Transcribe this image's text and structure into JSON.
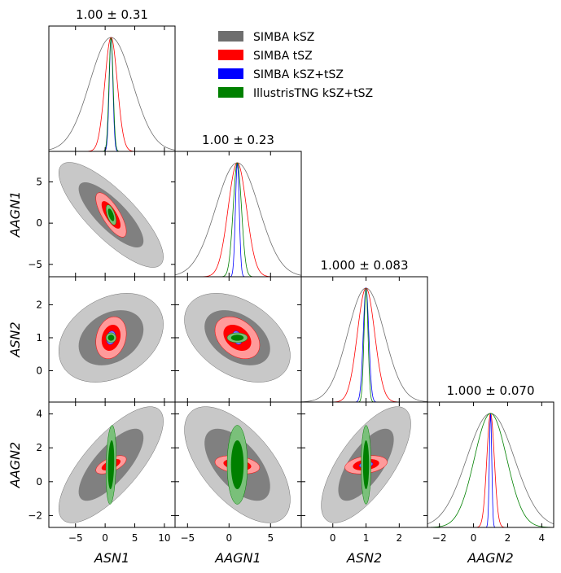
{
  "chart_data": {
    "type": "triangle-corner-plot",
    "parameters": [
      {
        "key": "ASN1",
        "label": "ASN1",
        "range": [
          -9.5,
          11.8
        ],
        "ticks": [
          -5,
          0,
          5,
          10
        ],
        "tick_labels": [
          "−5",
          "0",
          "5",
          "10"
        ],
        "title": "1.00 ± 0.31"
      },
      {
        "key": "AAGN1",
        "label": "AAGN1",
        "range": [
          -6.5,
          8.7
        ],
        "ticks": [
          -5,
          0,
          5
        ],
        "tick_labels": [
          "−5",
          "0",
          "5"
        ],
        "title": "1.00 ± 0.23"
      },
      {
        "key": "ASN2",
        "label": "ASN2",
        "range": [
          -0.95,
          2.85
        ],
        "ticks": [
          0,
          1,
          2
        ],
        "tick_labels": [
          "0",
          "1",
          "2"
        ],
        "title": "1.000 ± 0.083"
      },
      {
        "key": "AAGN2",
        "label": "AAGN2",
        "range": [
          -2.7,
          4.7
        ],
        "ticks": [
          -2,
          0,
          2,
          4
        ],
        "tick_labels": [
          "−2",
          "0",
          "2",
          "4"
        ],
        "title": "1.000 ± 0.070"
      }
    ],
    "series": [
      {
        "name": "SIMBA kSZ",
        "color": "#6e6e6e",
        "inner_color": "#808080",
        "outer_color": "#c8c8c8",
        "sigma": [
          3.6,
          2.6,
          0.55,
          1.4
        ],
        "corr": [
          [
            1,
            -0.8,
            0.3,
            0.75
          ],
          [
            -0.8,
            1,
            -0.4,
            -0.6
          ],
          [
            0.3,
            -0.4,
            1,
            0.7
          ],
          [
            0.75,
            -0.6,
            0.7,
            1
          ]
        ]
      },
      {
        "name": "SIMBA tSZ",
        "color": "#ff0000",
        "inner_color": "#ff0000",
        "outer_color": "#ff9a9a",
        "sigma": [
          1.05,
          1.1,
          0.26,
          0.22
        ],
        "corr": [
          [
            1,
            -0.75,
            0.2,
            0.6
          ],
          [
            -0.75,
            1,
            -0.35,
            -0.3
          ],
          [
            0.2,
            -0.35,
            1,
            0.3
          ],
          [
            0.6,
            -0.3,
            0.3,
            1
          ]
        ]
      },
      {
        "name": "SIMBA kSZ+tSZ",
        "color": "#0000ff",
        "inner_color": "#0000ff",
        "outer_color": "#7a7aff",
        "sigma": [
          0.31,
          0.23,
          0.083,
          0.07
        ],
        "corr": [
          [
            1,
            -0.6,
            0.2,
            0.5
          ],
          [
            -0.6,
            1,
            -0.3,
            -0.3
          ],
          [
            0.2,
            -0.3,
            1,
            0.3
          ],
          [
            0.5,
            -0.3,
            0.3,
            1
          ]
        ]
      },
      {
        "name": "IllustrisTNG kSZ+tSZ",
        "color": "#008000",
        "inner_color": "#008000",
        "outer_color": "#7ac07a",
        "sigma": [
          0.35,
          0.5,
          0.06,
          0.95
        ],
        "corr": [
          [
            1,
            -0.6,
            0,
            0.2
          ],
          [
            -0.6,
            1,
            0,
            0
          ],
          [
            0,
            0,
            1,
            0
          ],
          [
            0.2,
            0,
            0,
            1
          ]
        ]
      }
    ],
    "means": [
      1.0,
      1.0,
      1.0,
      1.0
    ],
    "contour_levels": [
      "68%",
      "95%"
    ],
    "legend_position": "top-right"
  }
}
